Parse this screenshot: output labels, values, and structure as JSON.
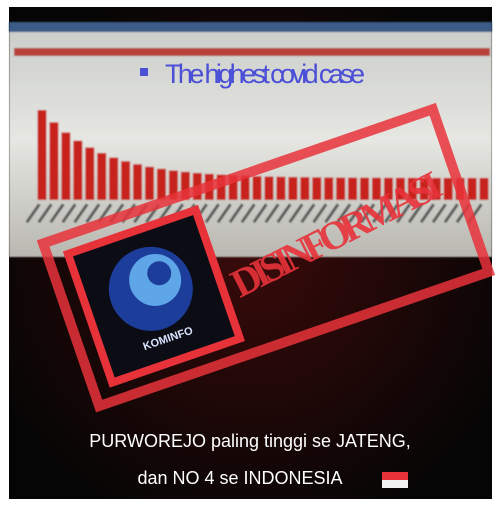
{
  "screen": {
    "headline": "The highest covid case"
  },
  "stamp": {
    "label": "DISINFORMASI",
    "logo_text": "KOMINFO"
  },
  "caption": {
    "line1": "PURWOREJO paling tinggi se JATENG,",
    "line2": "dan NO 4 se INDONESIA"
  }
}
